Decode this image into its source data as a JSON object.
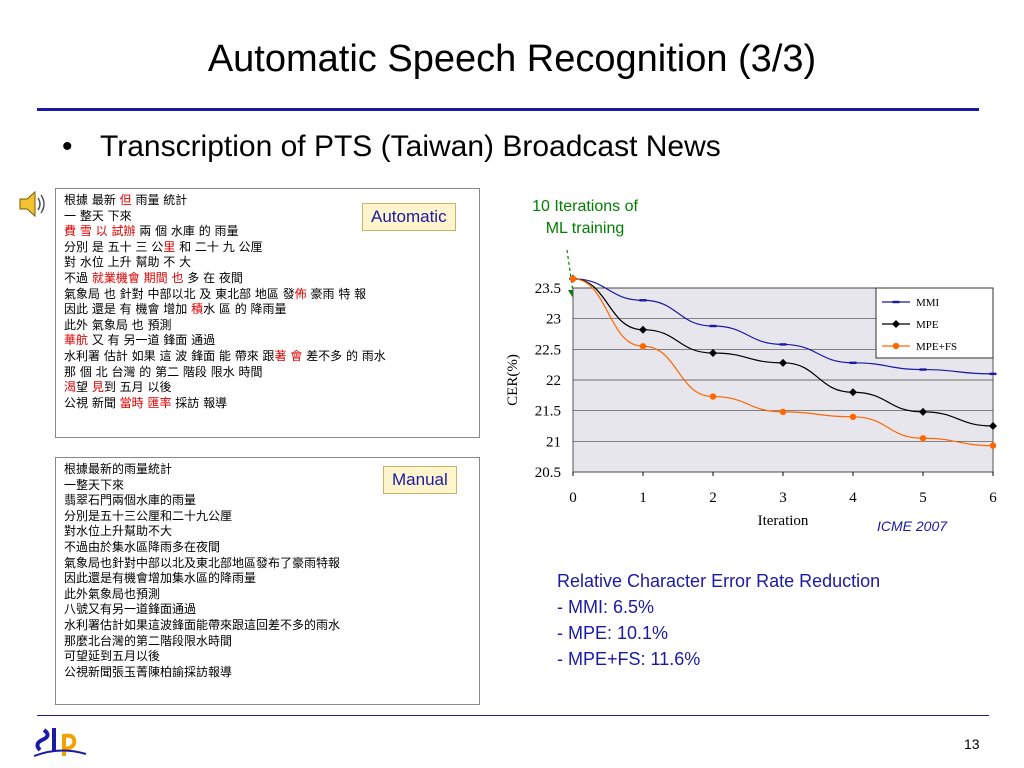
{
  "slide": {
    "title": "Automatic Speech Recognition (3/3)",
    "bullet": "Transcription of PTS (Taiwan) Broadcast News",
    "bullet_symbol": "•",
    "page_number": "13"
  },
  "automatic": {
    "tag": "Automatic",
    "lines": [
      [
        {
          "t": "根據 最新 "
        },
        {
          "t": "但",
          "red": true
        },
        {
          "t": " 雨量 統計"
        }
      ],
      [
        {
          "t": "一 整天 下來"
        }
      ],
      [
        {
          "t": "費 雪 以 試辦",
          "red": true
        },
        {
          "t": " 兩 個 水庫 的 雨量"
        }
      ],
      [
        {
          "t": "分別 是 五十 三 公"
        },
        {
          "t": "里",
          "red": true
        },
        {
          "t": " 和 二十 九 公厘"
        }
      ],
      [
        {
          "t": "對 水位 上升 幫助 不 大"
        }
      ],
      [
        {
          "t": "不過 "
        },
        {
          "t": "就業機會 期間 也",
          "red": true
        },
        {
          "t": " 多 在 夜間"
        }
      ],
      [
        {
          "t": "氣象局 也 針對 中部以北 及 東北部 地區 發"
        },
        {
          "t": "佈",
          "red": true
        },
        {
          "t": " 豪雨 特 報"
        }
      ],
      [
        {
          "t": "因此 還是 有 機會 增加 "
        },
        {
          "t": "積",
          "red": true
        },
        {
          "t": "水 區 的 降雨量"
        }
      ],
      [
        {
          "t": "此外 氣象局 也 預測"
        }
      ],
      [
        {
          "t": "華航",
          "red": true
        },
        {
          "t": " 又 有 另一道 鋒面 通過"
        }
      ],
      [
        {
          "t": "水利署 估計 如果 這 波 鋒面 能 帶來 跟"
        },
        {
          "t": "著 會",
          "red": true
        },
        {
          "t": " 差不多 的 雨水"
        }
      ],
      [
        {
          "t": "那 個 北 台灣 的 第二 階段 限水 時間"
        }
      ],
      [
        {
          "t": "渴",
          "red": true
        },
        {
          "t": "望 "
        },
        {
          "t": "見",
          "red": true
        },
        {
          "t": "到 五月 以後"
        }
      ],
      [
        {
          "t": "公視 新聞 "
        },
        {
          "t": "當時 匯率",
          "red": true
        },
        {
          "t": " 採訪 報導"
        }
      ]
    ]
  },
  "manual": {
    "tag": "Manual",
    "lines": [
      "根據最新的雨量統計",
      "一整天下來",
      "翡翠石門兩個水庫的雨量",
      "分別是五十三公厘和二十九公厘",
      "對水位上升幫助不大",
      "不過由於集水區降雨多在夜間",
      "氣象局也針對中部以北及東北部地區發布了豪雨特報",
      "因此還是有機會增加集水區的降雨量",
      "此外氣象局也預測",
      "八號又有另一道鋒面通過",
      "水利署估計如果這波鋒面能帶來跟這回差不多的雨水",
      "那麼北台灣的第二階段限水時間",
      "可望延到五月以後",
      "公視新聞張玉菁陳柏諭採訪報導"
    ]
  },
  "annotation": {
    "line1": "10 Iterations of",
    "line2": "ML training"
  },
  "citation": "ICME 2007",
  "reduction": {
    "title": "Relative Character Error Rate Reduction",
    "items": [
      "- MMI: 6.5%",
      "- MPE: 10.1%",
      "- MPE+FS: 11.6%"
    ]
  },
  "colors": {
    "title_rule": "#1a1aa6",
    "accent_blue": "#1a1aa6",
    "red_text": "#e00000",
    "annotation_green": "#008000",
    "tag_fill": "#fff5cc"
  },
  "chart_data": {
    "type": "line",
    "x": [
      0,
      1,
      2,
      3,
      4,
      5,
      6
    ],
    "xlabel": "Iteration",
    "ylabel": "CER(%)",
    "ylim": [
      20.5,
      23.5
    ],
    "yticks": [
      "20.5",
      "21",
      "21.5",
      "22",
      "22.5",
      "23",
      "23.5"
    ],
    "xticks": [
      "0",
      "1",
      "2",
      "3",
      "4",
      "5",
      "6"
    ],
    "grid": true,
    "legend_position": "top-right",
    "series": [
      {
        "name": "MMI",
        "color": "#1a1aa6",
        "marker": "dash",
        "values": [
          23.65,
          23.3,
          22.88,
          22.58,
          22.28,
          22.17,
          22.1
        ]
      },
      {
        "name": "MPE",
        "color": "#000000",
        "marker": "diamond",
        "values": [
          23.65,
          22.82,
          22.44,
          22.28,
          21.8,
          21.48,
          21.25
        ]
      },
      {
        "name": "MPE+FS",
        "color": "#ff6600",
        "marker": "circle",
        "values": [
          23.65,
          22.55,
          21.73,
          21.48,
          21.4,
          21.05,
          20.93
        ]
      }
    ]
  }
}
